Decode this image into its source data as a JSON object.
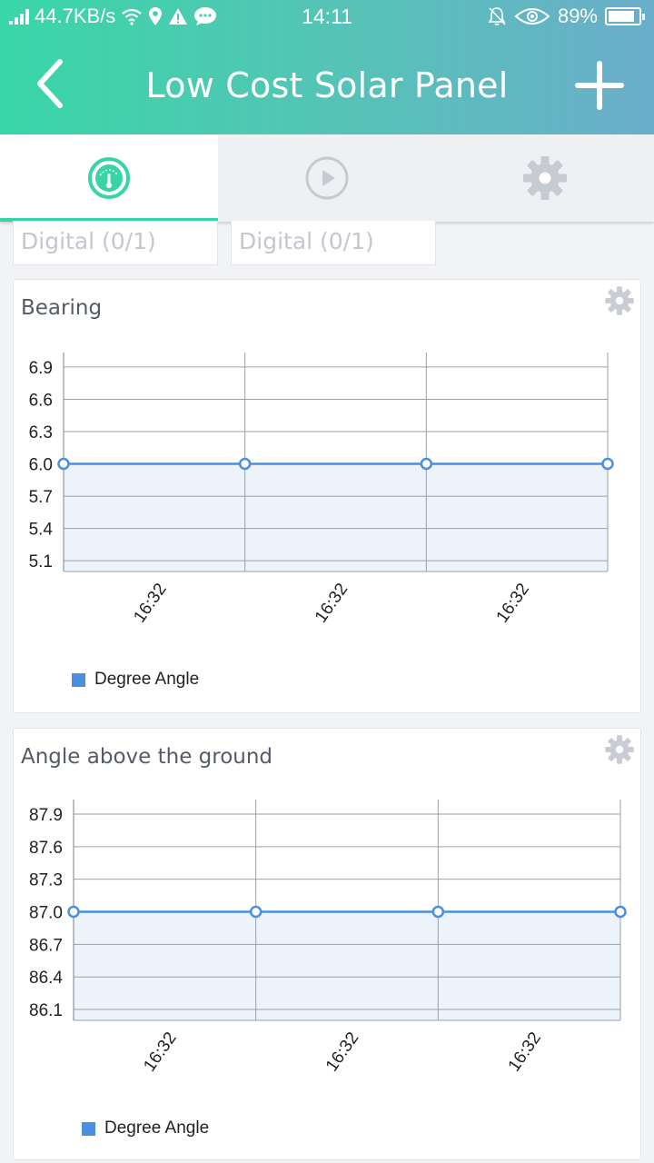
{
  "status_bar": {
    "speed": "44.7KB/s",
    "time": "14:11",
    "battery": "89%",
    "battery_level": 0.89
  },
  "app_bar": {
    "title": "Low Cost Solar Panel"
  },
  "tabs": [
    {
      "name": "dashboard",
      "active": true
    },
    {
      "name": "play",
      "active": false
    },
    {
      "name": "settings",
      "active": false
    }
  ],
  "digital_fields": [
    {
      "placeholder": "Digital (0/1)"
    },
    {
      "placeholder": "Digital (0/1)"
    }
  ],
  "cards": [
    {
      "title": "Bearing",
      "legend": "Degree Angle"
    },
    {
      "title": "Angle above the ground",
      "legend": "Degree Angle"
    }
  ],
  "colors": {
    "accent": "#37d5a6",
    "series": "#4a8fe0",
    "fill": "#edf3fa"
  },
  "chart_data": [
    {
      "type": "line",
      "title": "Bearing",
      "x": [
        "16:32",
        "16:32",
        "16:32",
        "16:32"
      ],
      "x_ticks": [
        "16:32",
        "16:32",
        "16:32"
      ],
      "series": [
        {
          "name": "Degree Angle",
          "values": [
            6.0,
            6.0,
            6.0,
            6.0
          ]
        }
      ],
      "yticks": [
        6.9,
        6.6,
        6.3,
        6.0,
        5.7,
        5.4,
        5.1
      ],
      "ylim": [
        5.0,
        6.95
      ],
      "grid": true,
      "legend": "bottom-left",
      "area": true
    },
    {
      "type": "line",
      "title": "Angle above the ground",
      "x": [
        "16:32",
        "16:32",
        "16:32",
        "16:32"
      ],
      "x_ticks": [
        "16:32",
        "16:32",
        "16:32"
      ],
      "series": [
        {
          "name": "Degree Angle",
          "values": [
            87.0,
            87.0,
            87.0,
            87.0
          ]
        }
      ],
      "yticks": [
        87.9,
        87.6,
        87.3,
        87.0,
        86.7,
        86.4,
        86.1
      ],
      "ylim": [
        86.0,
        87.95
      ],
      "grid": true,
      "legend": "bottom-left",
      "area": true
    }
  ]
}
